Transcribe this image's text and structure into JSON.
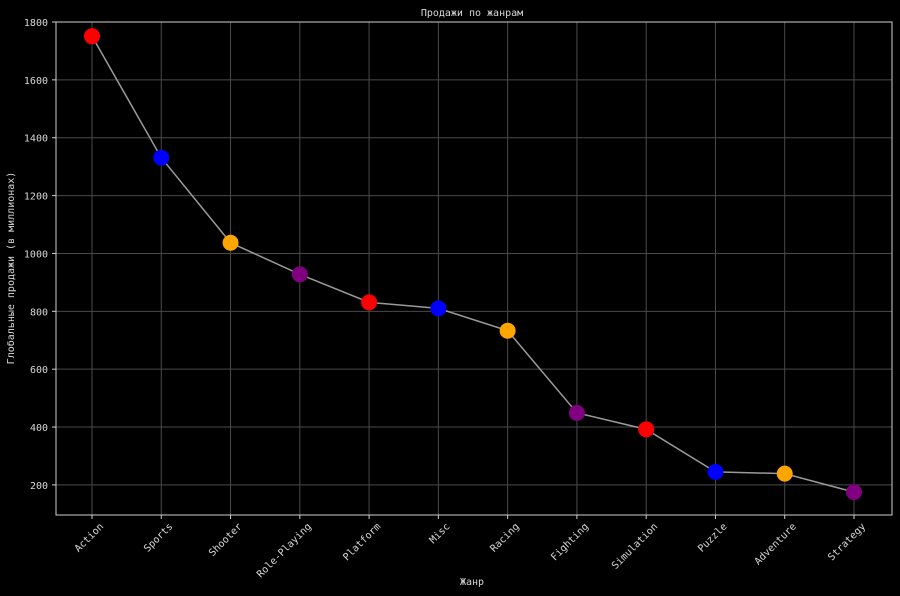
{
  "chart_data": {
    "type": "line",
    "title": "Продажи по жанрам",
    "xlabel": "Жанр",
    "ylabel": "Глобальные продажи (в миллионах)",
    "categories": [
      "Action",
      "Sports",
      "Shooter",
      "Role-Playing",
      "Platform",
      "Misc",
      "Racing",
      "Fighting",
      "Simulation",
      "Puzzle",
      "Adventure",
      "Strategy"
    ],
    "values": [
      1751,
      1331,
      1037,
      928,
      831,
      810,
      733,
      449,
      392,
      245,
      239,
      175
    ],
    "point_colors": [
      "#ff0000",
      "#0000ff",
      "#ffa500",
      "#800080",
      "#ff0000",
      "#0000ff",
      "#ffa500",
      "#800080",
      "#ff0000",
      "#0000ff",
      "#ffa500",
      "#800080"
    ],
    "y_ticks": [
      200,
      400,
      600,
      800,
      1000,
      1200,
      1400,
      1600,
      1800
    ],
    "ylim": [
      96,
      1800
    ],
    "grid": true,
    "colors": {
      "background": "#000000",
      "line": "#9a9a9a",
      "grid": "#4a4a4a",
      "text": "#d8d8d8"
    }
  }
}
